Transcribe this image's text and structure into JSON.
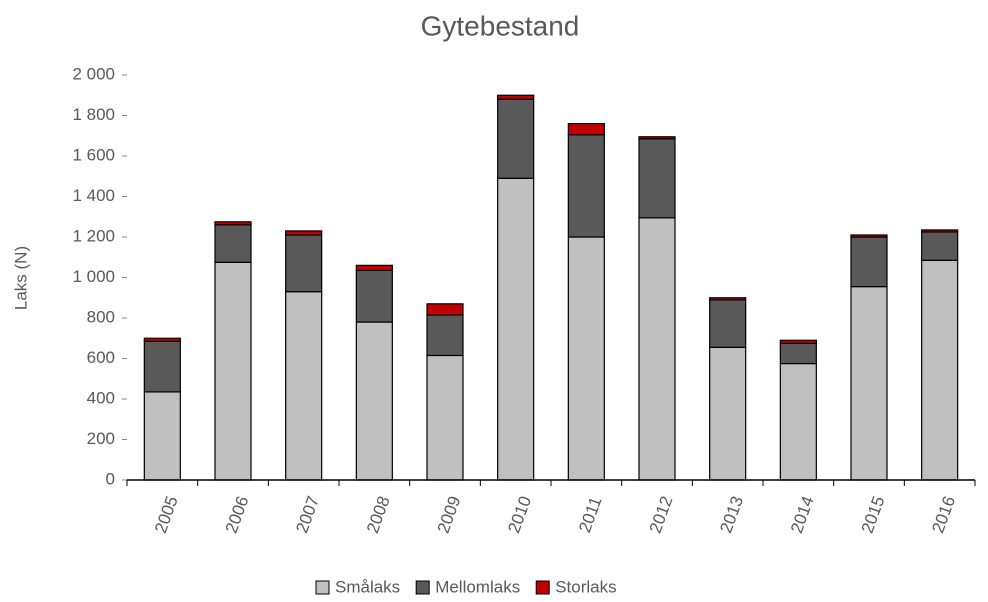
{
  "chart_data": {
    "type": "stacked_bar",
    "title": "Gytebestand",
    "ylabel": "Laks (N)",
    "categories": [
      "2005",
      "2006",
      "2007",
      "2008",
      "2009",
      "2010",
      "2011",
      "2012",
      "2013",
      "2014",
      "2015",
      "2016"
    ],
    "series": [
      {
        "name": "Smålaks",
        "color": "#c0c0c0",
        "values": [
          435,
          1075,
          930,
          780,
          615,
          1490,
          1200,
          1295,
          655,
          575,
          955,
          1085
        ]
      },
      {
        "name": "Mellomlaks",
        "color": "#595959",
        "values": [
          250,
          185,
          280,
          255,
          200,
          390,
          505,
          390,
          235,
          100,
          245,
          140
        ]
      },
      {
        "name": "Storlaks",
        "color": "#c00000",
        "values": [
          15,
          15,
          20,
          25,
          55,
          20,
          55,
          10,
          10,
          15,
          10,
          10
        ]
      }
    ],
    "ylim": [
      0,
      2000
    ],
    "yticks": [
      0,
      200,
      400,
      600,
      800,
      {
        "value": 1000,
        "label": "1 000"
      },
      {
        "value": 1200,
        "label": "1 200"
      },
      {
        "value": 1400,
        "label": "1 400"
      },
      {
        "value": 1600,
        "label": "1 600"
      },
      {
        "value": 1800,
        "label": "1 800"
      },
      {
        "value": 2000,
        "label": "2 000"
      }
    ],
    "grid": false,
    "legend": "bottom"
  }
}
